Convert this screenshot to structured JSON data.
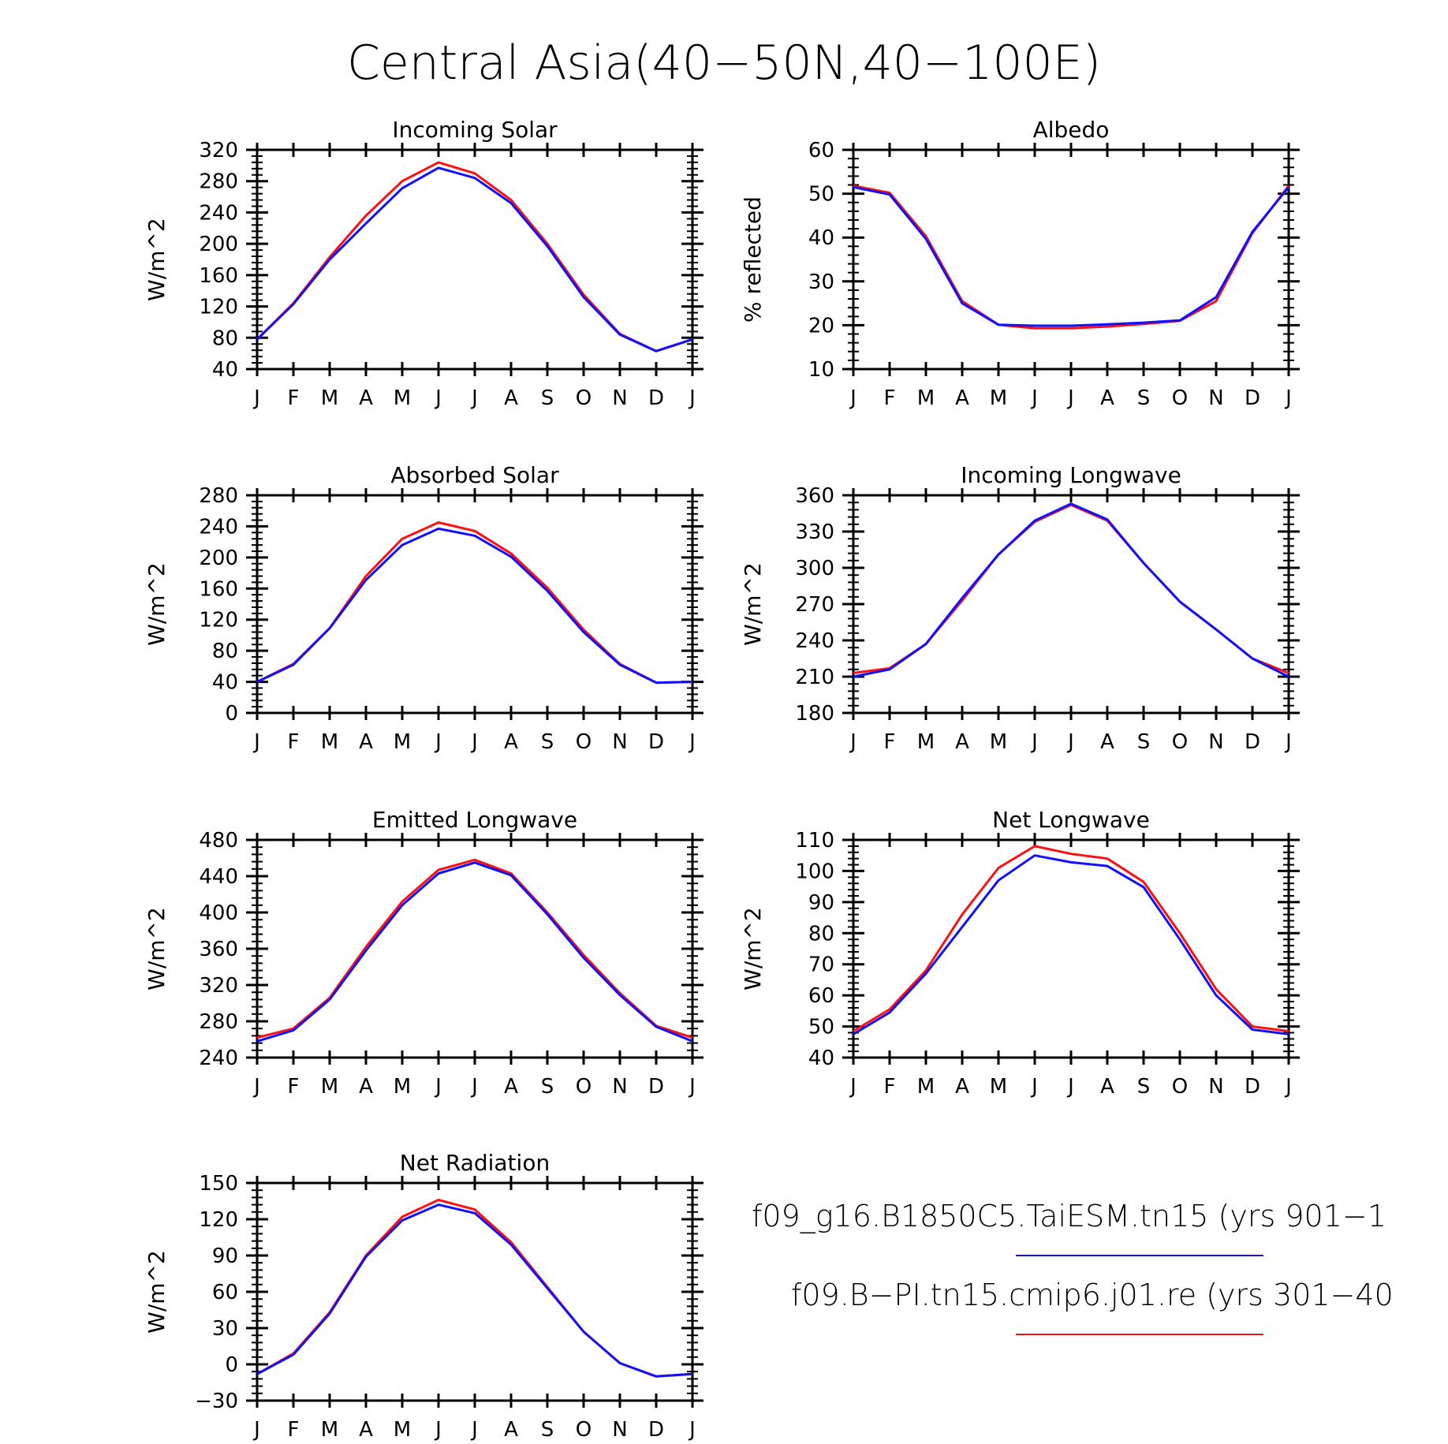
{
  "figure": {
    "title": "Central Asia(40−50N,40−100E)"
  },
  "colors": {
    "series_a": "#1010ff",
    "series_b": "#ff1010"
  },
  "legend": {
    "items": [
      {
        "label": "f09_g16.B1850C5.TaiESM.tn15 (yrs 901−1",
        "color": "#1010ff"
      },
      {
        "label": "f09.B−PI.tn15.cmip6.j01.re (yrs 301−40",
        "color": "#ff1010"
      }
    ]
  },
  "chart_data": [
    {
      "type": "line",
      "title": "Incoming Solar",
      "ylabel": "W/m^2",
      "ylim": [
        40,
        320
      ],
      "yticks": [
        40,
        80,
        120,
        160,
        200,
        240,
        280,
        320
      ],
      "categories": [
        "J",
        "F",
        "M",
        "A",
        "M",
        "J",
        "J",
        "A",
        "S",
        "O",
        "N",
        "D",
        "J"
      ],
      "series": [
        {
          "color": "#ff1010",
          "values": [
            78,
            124,
            183,
            236,
            280,
            304,
            290,
            256,
            200,
            135,
            85,
            63,
            78
          ]
        },
        {
          "color": "#1010ff",
          "values": [
            78,
            123,
            180,
            226,
            271,
            297,
            284,
            252,
            197,
            132,
            84,
            63,
            78
          ]
        }
      ]
    },
    {
      "type": "line",
      "title": "Albedo",
      "ylabel": "% reflected",
      "ylim": [
        10,
        60
      ],
      "yticks": [
        10,
        20,
        30,
        40,
        50,
        60
      ],
      "categories": [
        "J",
        "F",
        "M",
        "A",
        "M",
        "J",
        "J",
        "A",
        "S",
        "O",
        "N",
        "D",
        "J"
      ],
      "series": [
        {
          "color": "#ff1010",
          "values": [
            51.8,
            50.2,
            40.3,
            25.5,
            20.1,
            19.3,
            19.3,
            19.7,
            20.3,
            21.0,
            25.5,
            41.0,
            51.8
          ]
        },
        {
          "color": "#1010ff",
          "values": [
            51.5,
            49.8,
            39.7,
            25.0,
            20.1,
            19.9,
            19.9,
            20.2,
            20.6,
            21.1,
            26.4,
            41.3,
            51.5
          ]
        }
      ]
    },
    {
      "type": "line",
      "title": "Absorbed Solar",
      "ylabel": "W/m^2",
      "ylim": [
        0,
        280
      ],
      "yticks": [
        0,
        40,
        80,
        120,
        160,
        200,
        240,
        280
      ],
      "categories": [
        "J",
        "F",
        "M",
        "A",
        "M",
        "J",
        "J",
        "A",
        "S",
        "O",
        "N",
        "D",
        "J"
      ],
      "series": [
        {
          "color": "#ff1010",
          "values": [
            40,
            63,
            109,
            176,
            224,
            245,
            234,
            205,
            161,
            107,
            63,
            39,
            40
          ]
        },
        {
          "color": "#1010ff",
          "values": [
            40,
            62,
            109,
            171,
            216,
            237,
            228,
            201,
            157,
            104,
            62,
            39,
            40
          ]
        }
      ]
    },
    {
      "type": "line",
      "title": "Incoming Longwave",
      "ylabel": "W/m^2",
      "ylim": [
        180,
        360
      ],
      "yticks": [
        180,
        210,
        240,
        270,
        300,
        330,
        360
      ],
      "categories": [
        "J",
        "F",
        "M",
        "A",
        "M",
        "J",
        "J",
        "A",
        "S",
        "O",
        "N",
        "D",
        "J"
      ],
      "series": [
        {
          "color": "#ff1010",
          "values": [
            213,
            217,
            237,
            273,
            311,
            338,
            352,
            339,
            304,
            272,
            249,
            225,
            213
          ]
        },
        {
          "color": "#1010ff",
          "values": [
            210,
            216,
            237,
            275,
            311,
            339,
            353,
            340,
            304,
            272,
            249,
            225,
            210
          ]
        }
      ]
    },
    {
      "type": "line",
      "title": "Emitted Longwave",
      "ylabel": "W/m^2",
      "ylim": [
        240,
        480
      ],
      "yticks": [
        240,
        280,
        320,
        360,
        400,
        440,
        480
      ],
      "categories": [
        "J",
        "F",
        "M",
        "A",
        "M",
        "J",
        "J",
        "A",
        "S",
        "O",
        "N",
        "D",
        "J"
      ],
      "series": [
        {
          "color": "#ff1010",
          "values": [
            262,
            272,
            306,
            362,
            412,
            447,
            458,
            443,
            400,
            353,
            311,
            275,
            262
          ]
        },
        {
          "color": "#1010ff",
          "values": [
            258,
            270,
            304,
            358,
            408,
            443,
            455,
            441,
            398,
            350,
            309,
            274,
            258
          ]
        }
      ]
    },
    {
      "type": "line",
      "title": "Net Longwave",
      "ylabel": "W/m^2",
      "ylim": [
        40,
        110
      ],
      "yticks": [
        40,
        50,
        60,
        70,
        80,
        90,
        100,
        110
      ],
      "categories": [
        "J",
        "F",
        "M",
        "A",
        "M",
        "J",
        "J",
        "A",
        "S",
        "O",
        "N",
        "D",
        "J"
      ],
      "series": [
        {
          "color": "#ff1010",
          "values": [
            48.5,
            55.5,
            68,
            86,
            101,
            108,
            105.5,
            104,
            96.5,
            80,
            62,
            50,
            48.5
          ]
        },
        {
          "color": "#1010ff",
          "values": [
            47.5,
            54.5,
            67,
            82,
            97,
            105,
            102.8,
            101.6,
            94.8,
            78,
            60,
            49,
            47.5
          ]
        }
      ]
    },
    {
      "type": "line",
      "title": "Net Radiation",
      "ylabel": "W/m^2",
      "ylim": [
        -30,
        150
      ],
      "yticks": [
        -30,
        0,
        30,
        60,
        90,
        120,
        150
      ],
      "categories": [
        "J",
        "F",
        "M",
        "A",
        "M",
        "J",
        "J",
        "A",
        "S",
        "O",
        "N",
        "D",
        "J"
      ],
      "series": [
        {
          "color": "#ff1010",
          "values": [
            -8,
            9,
            43,
            90,
            122,
            136,
            128,
            101,
            64,
            27,
            1,
            -10,
            -8
          ]
        },
        {
          "color": "#1010ff",
          "values": [
            -8,
            8,
            42,
            89,
            119,
            132,
            125,
            99,
            63,
            27,
            1,
            -10,
            -8
          ]
        }
      ]
    }
  ]
}
